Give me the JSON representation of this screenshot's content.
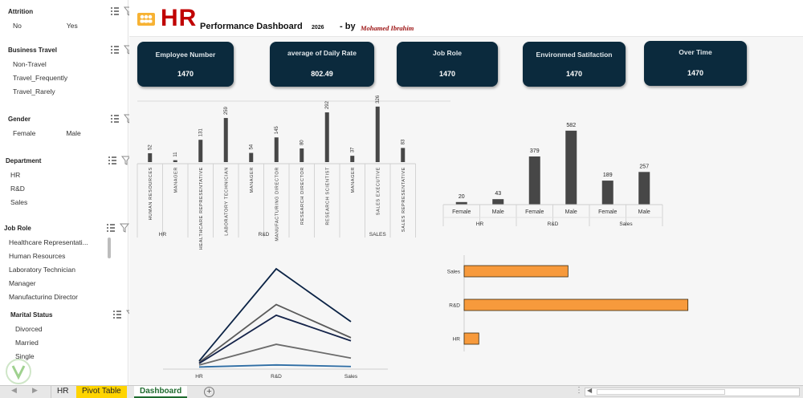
{
  "slicers": {
    "attrition": {
      "title": "Attrition",
      "items": [
        "No",
        "Yes"
      ]
    },
    "business_travel": {
      "title": "Business Travel",
      "items": [
        "Non-Travel",
        "Travel_Frequently",
        "Travel_Rarely"
      ]
    },
    "gender": {
      "title": "Gender",
      "items": [
        "Female",
        "Male"
      ]
    },
    "department": {
      "title": "Department",
      "items": [
        "HR",
        "R&D",
        "Sales"
      ]
    },
    "job_role": {
      "title": "Job Role",
      "items": [
        "Healthcare Representati...",
        "Human Resources",
        "Laboratory Technician",
        "Manager",
        "Manufacturing Director"
      ]
    },
    "marital_status": {
      "title": "Marital Status",
      "items": [
        "Divorced",
        "Married",
        "Single"
      ]
    }
  },
  "header": {
    "logo": "HR",
    "title": "Performance Dashboard",
    "year": "2026",
    "by": "- by",
    "author": "Mohamed Ibrahim"
  },
  "kpis": [
    {
      "label": "Employee Number",
      "value": "1470"
    },
    {
      "label": "average of Daily Rate",
      "value": "802.49"
    },
    {
      "label": "Job Role",
      "value": "1470"
    },
    {
      "label": "Environmed Satifaction",
      "value": "1470"
    },
    {
      "label": "Over Time",
      "value": "1470"
    }
  ],
  "tabs": [
    "HR",
    "Pivot Table",
    "Dashboard"
  ],
  "colors": {
    "kpi_bg": "#0b2a3d",
    "bar_dark": "#474747",
    "bar_orange": "#f79a3c",
    "title_red": "#c00000",
    "tab_yellow": "#ffd400"
  },
  "chart_data": [
    {
      "type": "bar",
      "groups": [
        "HR",
        "R&D",
        "SALES"
      ],
      "categories": [
        "HUMAN RESOURCES",
        "MANAGER",
        "HEALTHCARE REPRESENTATIVE",
        "LABORATORY TECHNICIAN",
        "MANAGER",
        "MANUFACTURING DIRECTOR",
        "RESEARCH DIRECTOR",
        "RESEARCH SCIENTIST",
        "MANAGER",
        "SALES EXECUTIVE",
        "SALES REPRESENTATIVE"
      ],
      "category_groups": [
        0,
        0,
        1,
        1,
        1,
        1,
        1,
        1,
        2,
        2,
        2
      ],
      "values": [
        52,
        11,
        131,
        259,
        54,
        145,
        80,
        292,
        37,
        326,
        83
      ]
    },
    {
      "type": "bar",
      "groups": [
        "HR",
        "R&D",
        "Sales"
      ],
      "categories": [
        "Female",
        "Male",
        "Female",
        "Male",
        "Female",
        "Male"
      ],
      "category_groups": [
        0,
        0,
        1,
        1,
        2,
        2
      ],
      "values": [
        20,
        43,
        379,
        582,
        189,
        257
      ]
    },
    {
      "type": "line",
      "categories": [
        "HR",
        "R&D",
        "Sales"
      ],
      "series": [
        {
          "values": [
            63,
            961,
            446
          ],
          "color": "#0b2345"
        },
        {
          "values": [
            49,
            613,
            290
          ],
          "color": "#5a5a5a"
        },
        {
          "values": [
            40,
            509,
            260
          ],
          "color": "#15244a"
        },
        {
          "values": [
            24,
            226,
            92
          ],
          "color": "#6b6b6b"
        },
        {
          "values": [
            5,
            25,
            10
          ],
          "color": "#2e6da4"
        }
      ],
      "ylim": [
        0,
        1000
      ]
    },
    {
      "type": "bar",
      "orientation": "horizontal",
      "categories": [
        "Sales",
        "R&D",
        "HR"
      ],
      "values": [
        446,
        961,
        63
      ],
      "xlim": [
        0,
        1000
      ]
    }
  ]
}
